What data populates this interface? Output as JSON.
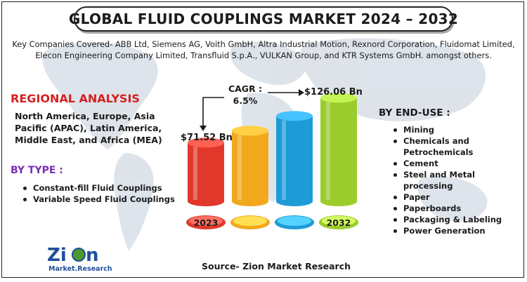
{
  "title": "GLOBAL FLUID COUPLINGS MARKET 2024 – 2032",
  "companies_text": "Key Companies Covered- ABB Ltd, Siemens AG, Voith GmbH, Altra Industrial Motion, Rexnord Corporation, Fluidomat Limited, Elecon Engineering Company Limited, Transfluid S.p.A., VULKAN Group, and KTR Systems GmbH. amongst others.",
  "regional": {
    "heading": "REGIONAL ANALYSIS",
    "text": "North America, Europe, Asia Pacific (APAC), Latin America, Middle East, and Africa (MEA)"
  },
  "by_type": {
    "heading": "BY TYPE :",
    "items": [
      "Constant-fill Fluid Couplings",
      "Variable Speed Fluid Couplings"
    ]
  },
  "by_end_use": {
    "heading": "BY END-USE :",
    "items": [
      "Mining",
      "Chemicals and Petrochemicals",
      "Cement",
      "Steel and Metal processing",
      "Paper",
      "Paperboards",
      "Packaging & Labeling",
      "Power Generation"
    ]
  },
  "cagr_label": "CAGR :",
  "cagr_value": "6.5%",
  "value_start_label": "$71.52 Bn",
  "value_end_label": "$126.06 Bn",
  "source": "Source- Zion Market Research",
  "logo": {
    "name": "Zion",
    "sub": "Market.Research"
  },
  "colors": {
    "title_text": "#1b1b1b",
    "regional_heading": "#d42121",
    "type_heading": "#7a2fb3",
    "bar1": "#e0392b",
    "bar2": "#f2a81d",
    "bar3": "#1e9bd7",
    "bar4": "#9ccc2b",
    "map": "#d6dde6"
  },
  "chart_data": {
    "type": "bar",
    "categories": [
      "2023",
      "",
      "",
      "2032"
    ],
    "values": [
      71.52,
      86,
      104,
      126.06
    ],
    "ylim": [
      0,
      135
    ],
    "grid": false,
    "legend": "none",
    "annotations": [
      "$71.52 Bn",
      "$126.06 Bn",
      "CAGR : 6.5%"
    ]
  }
}
